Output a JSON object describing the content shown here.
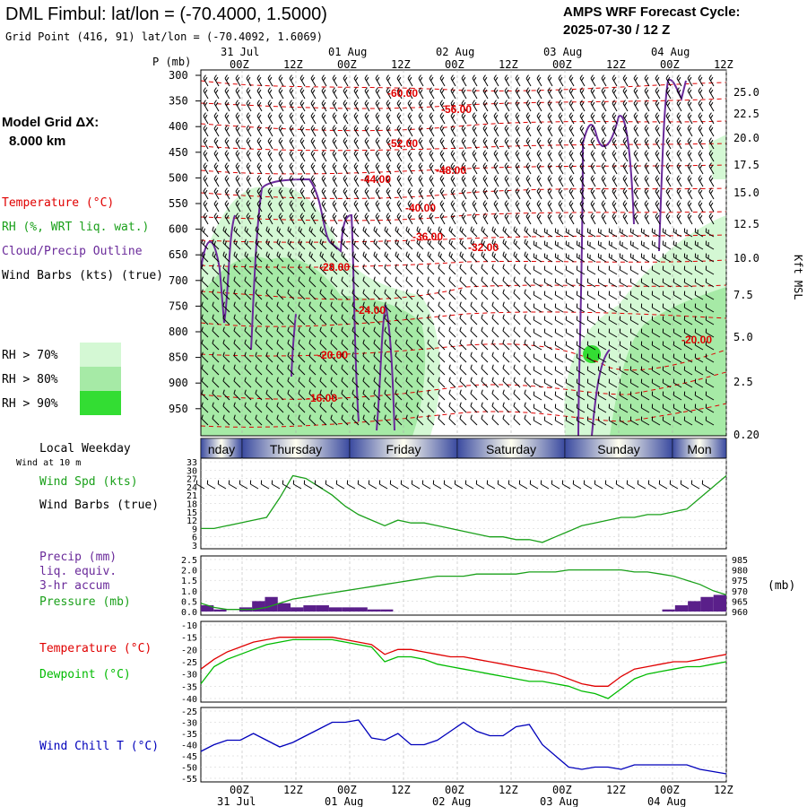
{
  "header": {
    "title": "DML Fimbul:  lat/lon = (-70.4000, 1.5000)",
    "grid_point": "Grid Point (416, 91) lat/lon = (-70.4092, 1.6069)",
    "cycle_line1": "AMPS WRF Forecast Cycle:",
    "cycle_line2": "2025-07-30 / 12  Z"
  },
  "model_grid": {
    "line1": "Model Grid ΔX:",
    "line2": "8.000 km"
  },
  "legend": {
    "temperature": "Temperature (°C)",
    "rh": "RH (%, WRT liq. wat.)",
    "cloud": "Cloud/Precip Outline",
    "wind": "Wind Barbs (kts) (true)",
    "rh70": "RH > 70%",
    "rh80": "RH > 80%",
    "rh90": "RH > 90%"
  },
  "colors": {
    "temperature": "#e00000",
    "rh": "#1aa01a",
    "cloud": "#6a2a9a",
    "rh70": "#d4f8d4",
    "rh80": "#a6eaa6",
    "rh90": "#33dd33",
    "dewpoint": "#00bb00",
    "windchill": "#0000bb",
    "precip": "#5a1f8a"
  },
  "time_axis": {
    "top_dates": [
      "31 Jul",
      "01 Aug",
      "02 Aug",
      "03 Aug",
      "04 Aug"
    ],
    "hours": [
      "00Z",
      "12Z",
      "00Z",
      "12Z",
      "00Z",
      "12Z",
      "00Z",
      "12Z",
      "00Z",
      "12Z"
    ],
    "bottom_dates": [
      "31 Jul",
      "01 Aug",
      "02 Aug",
      "03 Aug",
      "04 Aug"
    ]
  },
  "pressure_axis": {
    "label": "P (mb)",
    "ticks": [
      "300",
      "350",
      "400",
      "450",
      "500",
      "550",
      "600",
      "650",
      "700",
      "750",
      "800",
      "850",
      "900",
      "950"
    ]
  },
  "height_axis": {
    "label": "Kft MSL",
    "ticks": [
      "25.0",
      "22.5",
      "20.0",
      "17.5",
      "15.0",
      "12.5",
      "10.0",
      "7.5",
      "5.0",
      "2.5",
      "0.20"
    ]
  },
  "weekday": {
    "label": "Local Weekday",
    "days": [
      "Wednesday",
      "Thursday",
      "Friday",
      "Saturday",
      "Sunday",
      "Monday"
    ],
    "visible_text": [
      "nday",
      "Thursday",
      "Friday",
      "Saturday",
      "Sunday",
      "Mon"
    ]
  },
  "panels": {
    "wind_at": "Wind at 10 m",
    "wind_spd": "Wind Spd (kts)",
    "wind_barbs": "Wind Barbs (true)",
    "precip1": "Precip (mm)",
    "precip2": "liq. equiv.",
    "precip3": "3-hr accum",
    "pressure": "Pressure (mb)",
    "pressure_unit": "(mb)",
    "temperature": "Temperature (°C)",
    "dewpoint": "Dewpoint (°C)",
    "windchill": "Wind Chill T (°C)"
  },
  "chart_data": {
    "type": "line",
    "times_hours": [
      0,
      3,
      6,
      9,
      12,
      15,
      18,
      21,
      24,
      27,
      30,
      33,
      36,
      39,
      42,
      45,
      48,
      51,
      54,
      57,
      60,
      63,
      66,
      69,
      72,
      75,
      78,
      81,
      84,
      87,
      90,
      93,
      96,
      99,
      102,
      105,
      108,
      111,
      114,
      117,
      120
    ],
    "temperature_labels": [
      "-60.00",
      "-56.00",
      "-52.00",
      "-48.00",
      "-44.00",
      "-40.00",
      "-36.00",
      "-32.00",
      "-28.00",
      "-24.00",
      "-20.00",
      "-16.00",
      "-20.00"
    ],
    "wind_speed": {
      "ylim": [
        3,
        33
      ],
      "ticks": [
        "33",
        "30",
        "27",
        "24",
        "21",
        "18",
        "15",
        "12",
        "9",
        "6",
        "3"
      ],
      "values": [
        9,
        9,
        10,
        11,
        12,
        13,
        20,
        28,
        27,
        24,
        21,
        17,
        14,
        12,
        10,
        12,
        11,
        11,
        10,
        9,
        8,
        7,
        6,
        6,
        5,
        5,
        4,
        6,
        8,
        10,
        11,
        12,
        13,
        13,
        14,
        14,
        15,
        16,
        20,
        24,
        28
      ]
    },
    "precip": {
      "ylim": [
        0,
        2.5
      ],
      "ticks": [
        "2.5",
        "2.0",
        "1.5",
        "1.0",
        "0.5",
        "0.0"
      ],
      "values": [
        0.3,
        0.1,
        0,
        0.2,
        0.5,
        0.7,
        0.4,
        0.2,
        0.3,
        0.3,
        0.2,
        0.2,
        0.2,
        0.1,
        0.1,
        0,
        0,
        0,
        0,
        0,
        0,
        0,
        0,
        0,
        0,
        0,
        0,
        0,
        0,
        0,
        0,
        0,
        0,
        0,
        0,
        0,
        0.1,
        0.3,
        0.5,
        0.7,
        0.8
      ]
    },
    "pressure": {
      "ylim": [
        960,
        985
      ],
      "ticks": [
        "985",
        "980",
        "975",
        "970",
        "965",
        "960"
      ],
      "values": [
        964,
        962,
        961,
        961,
        961,
        962,
        964,
        966,
        967,
        968,
        969,
        970,
        971,
        972,
        973,
        974,
        975,
        976,
        977,
        977,
        977,
        978,
        978,
        978,
        978,
        979,
        979,
        979,
        980,
        980,
        980,
        980,
        980,
        979,
        979,
        978,
        977,
        975,
        973,
        970,
        968
      ]
    },
    "temperature": {
      "ylim": [
        -40,
        -10
      ],
      "ticks": [
        "-10",
        "-15",
        "-20",
        "-25",
        "-30",
        "-35",
        "-40"
      ],
      "values": [
        -28,
        -24,
        -21,
        -19,
        -17,
        -16,
        -15,
        -15,
        -15,
        -15,
        -15,
        -16,
        -17,
        -18,
        -22,
        -20,
        -20,
        -21,
        -22,
        -23,
        -23,
        -24,
        -25,
        -26,
        -27,
        -28,
        -29,
        -30,
        -32,
        -34,
        -35,
        -35,
        -31,
        -28,
        -27,
        -26,
        -25,
        -25,
        -24,
        -23,
        -22
      ]
    },
    "dewpoint": {
      "values": [
        -34,
        -27,
        -24,
        -22,
        -20,
        -18,
        -17,
        -16,
        -16,
        -16,
        -16,
        -17,
        -18,
        -19,
        -25,
        -23,
        -23,
        -24,
        -26,
        -27,
        -28,
        -29,
        -30,
        -31,
        -32,
        -33,
        -33,
        -34,
        -35,
        -37,
        -38,
        -40,
        -36,
        -32,
        -30,
        -29,
        -28,
        -27,
        -27,
        -26,
        -25
      ]
    },
    "windchill": {
      "ylim": [
        -55,
        -25
      ],
      "ticks": [
        "-25",
        "-30",
        "-35",
        "-40",
        "-45",
        "-50",
        "-55"
      ],
      "values": [
        -43,
        -40,
        -38,
        -38,
        -35,
        -38,
        -41,
        -39,
        -36,
        -33,
        -30,
        -30,
        -29,
        -37,
        -38,
        -35,
        -40,
        -40,
        -38,
        -34,
        -30,
        -34,
        -36,
        -36,
        -32,
        -31,
        -40,
        -45,
        -50,
        -51,
        -50,
        -50,
        -51,
        -49,
        -49,
        -49,
        -49,
        -49,
        -51,
        -52,
        -53
      ]
    }
  }
}
